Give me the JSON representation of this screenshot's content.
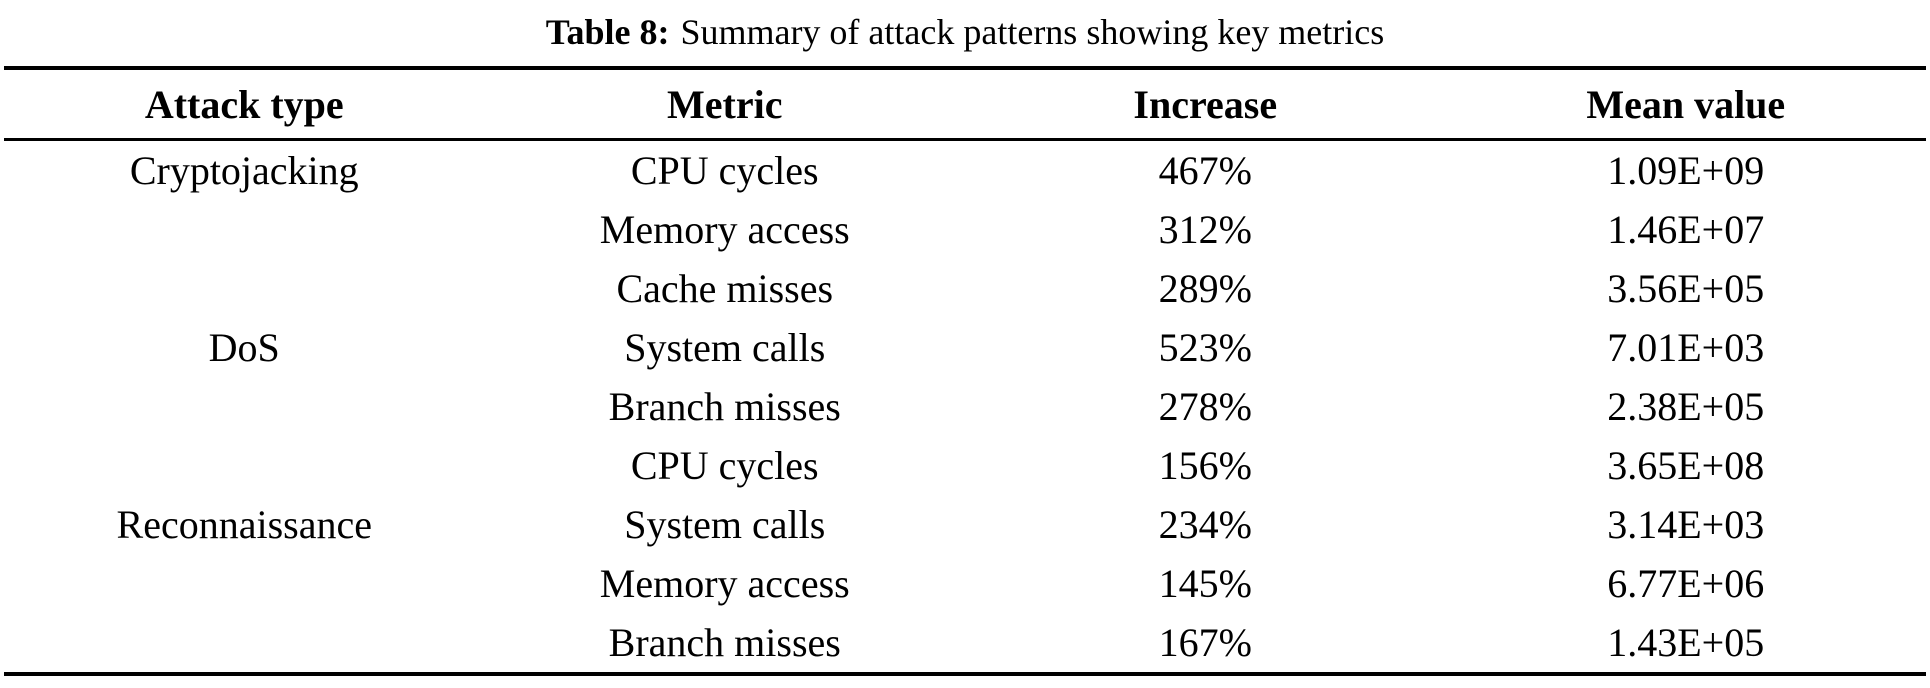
{
  "caption": {
    "label": "Table 8:",
    "text": "Summary of attack patterns showing key metrics"
  },
  "table": {
    "columns": [
      "Attack type",
      "Metric",
      "Increase",
      "Mean value"
    ],
    "rows": [
      {
        "attack_type": "Cryptojacking",
        "metric": "CPU cycles",
        "increase": "467%",
        "mean_value": "1.09E+09"
      },
      {
        "attack_type": "",
        "metric": "Memory access",
        "increase": "312%",
        "mean_value": "1.46E+07"
      },
      {
        "attack_type": "",
        "metric": "Cache misses",
        "increase": "289%",
        "mean_value": "3.56E+05"
      },
      {
        "attack_type": "DoS",
        "metric": "System calls",
        "increase": "523%",
        "mean_value": "7.01E+03"
      },
      {
        "attack_type": "",
        "metric": "Branch misses",
        "increase": "278%",
        "mean_value": "2.38E+05"
      },
      {
        "attack_type": "",
        "metric": "CPU cycles",
        "increase": "156%",
        "mean_value": "3.65E+08"
      },
      {
        "attack_type": "Reconnaissance",
        "metric": "System calls",
        "increase": "234%",
        "mean_value": "3.14E+03"
      },
      {
        "attack_type": "",
        "metric": "Memory access",
        "increase": "145%",
        "mean_value": "6.77E+06"
      },
      {
        "attack_type": "",
        "metric": "Branch misses",
        "increase": "167%",
        "mean_value": "1.43E+05"
      }
    ]
  },
  "colors": {
    "text": "#000000",
    "background": "#ffffff",
    "rule": "#000000"
  }
}
